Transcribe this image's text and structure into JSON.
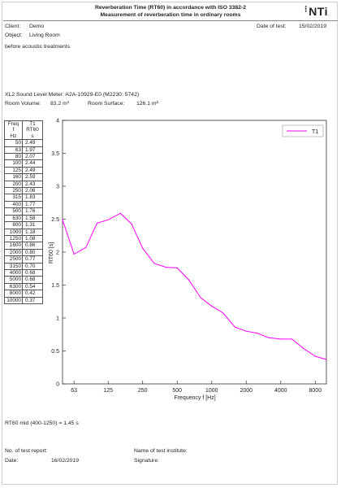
{
  "header": {
    "title_line1": "Reverberation Time (RT60) in accordance with ISO 3382-2",
    "title_line2": "Measurement of reverberation time in ordinary rooms",
    "logo": "NTi",
    "client_label": "Client:",
    "client_value": "Demo",
    "object_label": "Object:",
    "object_value": "Living Room",
    "date_label": "Date of test:",
    "date_value": "15/02/2019",
    "note": "before acoustic treatments"
  },
  "meter": {
    "device": "XL2 Sound Level Meter: A2A-10929-E0 (M2230: 5742)",
    "volume_label": "Room Volume:",
    "volume_value": "83.2 m³",
    "surface_label": "Room Surface:",
    "surface_value": "126.1 m²"
  },
  "table": {
    "head_freq": [
      "Freq",
      "f",
      "Hz"
    ],
    "head_rt": [
      "T1",
      "RT60",
      "s"
    ],
    "rows": [
      {
        "f": "50",
        "v": "2.49"
      },
      {
        "f": "63",
        "v": "1.97"
      },
      {
        "f": "80",
        "v": "2.07"
      },
      {
        "f": "100",
        "v": "2.44"
      },
      {
        "f": "125",
        "v": "2.49"
      },
      {
        "f": "160",
        "v": "2.59"
      },
      {
        "f": "200",
        "v": "2.43"
      },
      {
        "f": "250",
        "v": "2.06"
      },
      {
        "f": "315",
        "v": "1.83"
      },
      {
        "f": "400",
        "v": "1.77"
      },
      {
        "f": "500",
        "v": "1.76"
      },
      {
        "f": "630",
        "v": "1.58"
      },
      {
        "f": "800",
        "v": "1.31"
      },
      {
        "f": "1000",
        "v": "1.18"
      },
      {
        "f": "1250",
        "v": "1.08"
      },
      {
        "f": "1600",
        "v": "0.86"
      },
      {
        "f": "2000",
        "v": "0.80"
      },
      {
        "f": "2500",
        "v": "0.77"
      },
      {
        "f": "3150",
        "v": "0.70"
      },
      {
        "f": "4000",
        "v": "0.68"
      },
      {
        "f": "5000",
        "v": "0.68"
      },
      {
        "f": "6300",
        "v": "0.54"
      },
      {
        "f": "8000",
        "v": "0.42"
      },
      {
        "f": "10000",
        "v": "0.37"
      }
    ]
  },
  "chart_data": {
    "type": "line",
    "xlabel": "Frequency f [Hz]",
    "ylabel": "RT60 [s]",
    "x_scale": "log",
    "xlim": [
      50,
      10000
    ],
    "ylim": [
      0,
      4
    ],
    "x_ticks": [
      63,
      125,
      250,
      500,
      1000,
      2000,
      4000,
      8000
    ],
    "y_ticks": [
      0,
      0.5,
      1,
      1.5,
      2,
      2.5,
      3,
      3.5,
      4
    ],
    "grid": false,
    "legend": "top-right",
    "series": [
      {
        "name": "T1",
        "color": "#ff00ff",
        "x": [
          50,
          63,
          80,
          100,
          125,
          160,
          200,
          250,
          315,
          400,
          500,
          630,
          800,
          1000,
          1250,
          1600,
          2000,
          2500,
          3150,
          4000,
          5000,
          6300,
          8000,
          10000
        ],
        "values": [
          2.49,
          1.97,
          2.07,
          2.44,
          2.49,
          2.59,
          2.43,
          2.06,
          1.83,
          1.77,
          1.76,
          1.58,
          1.31,
          1.18,
          1.08,
          0.86,
          0.8,
          0.77,
          0.7,
          0.68,
          0.68,
          0.54,
          0.42,
          0.37
        ]
      }
    ]
  },
  "summary": "RT60 mid (400-1250) = 1.45 s",
  "footer": {
    "report_label": "No. of test report:",
    "date_label": "Date:",
    "date_value": "16/02/2019",
    "institute_label": "Name of test institute:",
    "signature_label": "Signature:"
  }
}
